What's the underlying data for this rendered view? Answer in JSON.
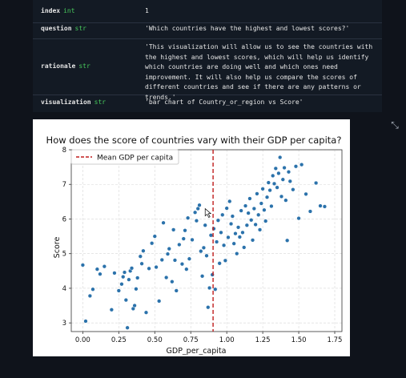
{
  "table": {
    "rows": [
      {
        "key": "index",
        "type": "int",
        "value": "1"
      },
      {
        "key": "question",
        "type": "str",
        "value": "'Which countries have the highest and lowest scores?'"
      },
      {
        "key": "rationale",
        "type": "str",
        "value": "'This visualization will allow us to see the countries with the highest and lowest scores, which will help us identify which countries are doing well and which ones need improvement. It will also help us compare the scores of different countries and see if there are any patterns or trends.'"
      },
      {
        "key": "visualization",
        "type": "str",
        "value": "'bar chart of Country_or_region vs Score'"
      }
    ]
  },
  "expand_icon": "expand-icon",
  "chart_data": {
    "type": "scatter",
    "title": "How does the score of countries vary with their GDP per capita?",
    "xlabel": "GDP_per_capita",
    "ylabel": "Score",
    "xlim": [
      -0.08,
      1.8
    ],
    "ylim": [
      2.75,
      8.0
    ],
    "xticks": [
      "0.00",
      "0.25",
      "0.50",
      "0.75",
      "1.00",
      "1.25",
      "1.50",
      "1.75"
    ],
    "yticks": [
      "3",
      "4",
      "5",
      "6",
      "7",
      "8"
    ],
    "grid": true,
    "legend": {
      "placement": "top-left",
      "entries": [
        "Mean GDP per capita"
      ]
    },
    "mean_line": {
      "x": 0.905,
      "color": "#c01c1c"
    },
    "point_color": "#2b72ab",
    "points": [
      [
        0.0,
        4.67
      ],
      [
        0.02,
        3.05
      ],
      [
        0.05,
        3.78
      ],
      [
        0.07,
        3.97
      ],
      [
        0.1,
        4.55
      ],
      [
        0.12,
        4.41
      ],
      [
        0.15,
        4.63
      ],
      [
        0.2,
        3.38
      ],
      [
        0.22,
        4.44
      ],
      [
        0.25,
        3.93
      ],
      [
        0.27,
        4.12
      ],
      [
        0.28,
        4.33
      ],
      [
        0.29,
        4.46
      ],
      [
        0.3,
        3.66
      ],
      [
        0.31,
        2.86
      ],
      [
        0.32,
        4.25
      ],
      [
        0.33,
        4.5
      ],
      [
        0.34,
        4.58
      ],
      [
        0.35,
        3.41
      ],
      [
        0.36,
        3.5
      ],
      [
        0.37,
        3.98
      ],
      [
        0.38,
        4.3
      ],
      [
        0.4,
        4.92
      ],
      [
        0.41,
        4.71
      ],
      [
        0.42,
        5.08
      ],
      [
        0.44,
        3.3
      ],
      [
        0.46,
        4.57
      ],
      [
        0.48,
        5.3
      ],
      [
        0.5,
        5.5
      ],
      [
        0.51,
        4.61
      ],
      [
        0.53,
        3.63
      ],
      [
        0.55,
        4.82
      ],
      [
        0.56,
        5.89
      ],
      [
        0.58,
        4.31
      ],
      [
        0.59,
        4.99
      ],
      [
        0.6,
        5.14
      ],
      [
        0.62,
        4.19
      ],
      [
        0.63,
        5.69
      ],
      [
        0.64,
        4.81
      ],
      [
        0.65,
        3.93
      ],
      [
        0.67,
        5.26
      ],
      [
        0.69,
        4.7
      ],
      [
        0.7,
        5.43
      ],
      [
        0.71,
        5.67
      ],
      [
        0.72,
        4.55
      ],
      [
        0.73,
        6.03
      ],
      [
        0.74,
        4.85
      ],
      [
        0.76,
        5.4
      ],
      [
        0.78,
        6.19
      ],
      [
        0.79,
        5.95
      ],
      [
        0.8,
        6.3
      ],
      [
        0.81,
        6.4
      ],
      [
        0.82,
        5.07
      ],
      [
        0.83,
        4.35
      ],
      [
        0.84,
        5.17
      ],
      [
        0.85,
        5.82
      ],
      [
        0.86,
        4.94
      ],
      [
        0.87,
        3.45
      ],
      [
        0.88,
        4.01
      ],
      [
        0.89,
        5.53
      ],
      [
        0.9,
        4.39
      ],
      [
        0.91,
        5.72
      ],
      [
        0.92,
        3.97
      ],
      [
        0.93,
        5.34
      ],
      [
        0.94,
        5.96
      ],
      [
        0.95,
        4.72
      ],
      [
        0.96,
        5.61
      ],
      [
        0.97,
        6.12
      ],
      [
        0.98,
        5.24
      ],
      [
        0.99,
        4.8
      ],
      [
        1.0,
        6.31
      ],
      [
        1.01,
        5.47
      ],
      [
        1.02,
        6.51
      ],
      [
        1.03,
        5.86
      ],
      [
        1.04,
        6.08
      ],
      [
        1.05,
        5.29
      ],
      [
        1.06,
        5.58
      ],
      [
        1.07,
        5.0
      ],
      [
        1.08,
        5.76
      ],
      [
        1.09,
        5.48
      ],
      [
        1.1,
        6.24
      ],
      [
        1.11,
        5.61
      ],
      [
        1.12,
        5.18
      ],
      [
        1.13,
        6.38
      ],
      [
        1.14,
        5.82
      ],
      [
        1.15,
        6.17
      ],
      [
        1.16,
        6.59
      ],
      [
        1.17,
        5.97
      ],
      [
        1.18,
        5.39
      ],
      [
        1.19,
        6.3
      ],
      [
        1.2,
        5.84
      ],
      [
        1.21,
        6.73
      ],
      [
        1.22,
        6.12
      ],
      [
        1.23,
        5.69
      ],
      [
        1.24,
        6.45
      ],
      [
        1.25,
        6.87
      ],
      [
        1.26,
        6.26
      ],
      [
        1.27,
        5.94
      ],
      [
        1.28,
        6.63
      ],
      [
        1.29,
        7.05
      ],
      [
        1.3,
        6.83
      ],
      [
        1.31,
        6.37
      ],
      [
        1.32,
        7.25
      ],
      [
        1.33,
        7.02
      ],
      [
        1.34,
        7.46
      ],
      [
        1.35,
        6.91
      ],
      [
        1.36,
        7.32
      ],
      [
        1.37,
        7.78
      ],
      [
        1.38,
        6.65
      ],
      [
        1.39,
        7.14
      ],
      [
        1.4,
        7.48
      ],
      [
        1.41,
        6.54
      ],
      [
        1.42,
        5.38
      ],
      [
        1.43,
        7.36
      ],
      [
        1.44,
        7.09
      ],
      [
        1.46,
        6.85
      ],
      [
        1.48,
        7.52
      ],
      [
        1.5,
        6.02
      ],
      [
        1.52,
        7.57
      ],
      [
        1.55,
        6.72
      ],
      [
        1.58,
        6.22
      ],
      [
        1.62,
        7.04
      ],
      [
        1.65,
        6.38
      ],
      [
        1.68,
        6.36
      ]
    ]
  }
}
